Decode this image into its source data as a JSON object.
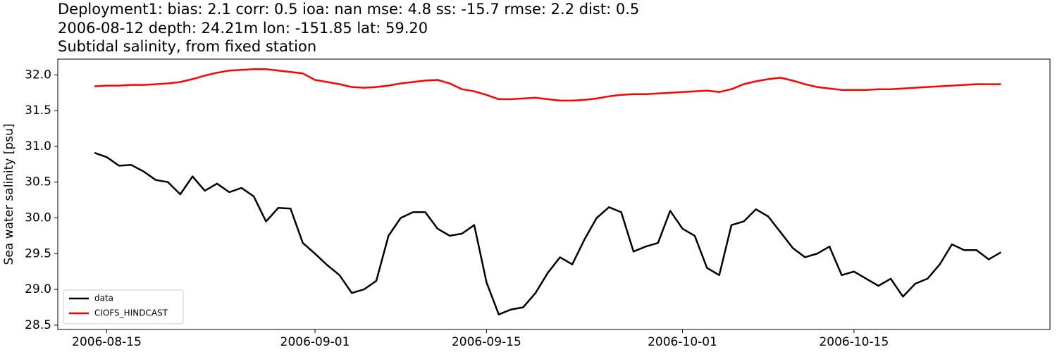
{
  "chart_data": {
    "type": "line",
    "title": [
      "Deployment1: bias: 2.1  corr: 0.5  ioa: nan  mse: 4.8  ss: -15.7  rmse: 2.2  dist: 0.5",
      "2006-08-12 depth: 24.21m lon: -151.85 lat: 59.20",
      "Subtidal salinity, from fixed station"
    ],
    "y_label": "Sea water salinity [psu]",
    "x": [
      "2006-08-14",
      "2006-08-15",
      "2006-08-16",
      "2006-08-17",
      "2006-08-18",
      "2006-08-19",
      "2006-08-20",
      "2006-08-21",
      "2006-08-22",
      "2006-08-23",
      "2006-08-24",
      "2006-08-25",
      "2006-08-26",
      "2006-08-27",
      "2006-08-28",
      "2006-08-29",
      "2006-08-30",
      "2006-08-31",
      "2006-09-01",
      "2006-09-02",
      "2006-09-03",
      "2006-09-04",
      "2006-09-05",
      "2006-09-06",
      "2006-09-07",
      "2006-09-08",
      "2006-09-09",
      "2006-09-10",
      "2006-09-11",
      "2006-09-12",
      "2006-09-13",
      "2006-09-14",
      "2006-09-15",
      "2006-09-16",
      "2006-09-17",
      "2006-09-18",
      "2006-09-19",
      "2006-09-20",
      "2006-09-21",
      "2006-09-22",
      "2006-09-23",
      "2006-09-24",
      "2006-09-25",
      "2006-09-26",
      "2006-09-27",
      "2006-09-28",
      "2006-09-29",
      "2006-09-30",
      "2006-10-01",
      "2006-10-02",
      "2006-10-03",
      "2006-10-04",
      "2006-10-05",
      "2006-10-06",
      "2006-10-07",
      "2006-10-08",
      "2006-10-09",
      "2006-10-10",
      "2006-10-11",
      "2006-10-12",
      "2006-10-13",
      "2006-10-14",
      "2006-10-15",
      "2006-10-16",
      "2006-10-17",
      "2006-10-18",
      "2006-10-19",
      "2006-10-20",
      "2006-10-21",
      "2006-10-22",
      "2006-10-23",
      "2006-10-24",
      "2006-10-25",
      "2006-10-26",
      "2006-10-27"
    ],
    "series": [
      {
        "name": "data",
        "color": "#000000",
        "values": [
          30.91,
          30.85,
          30.73,
          30.74,
          30.65,
          30.53,
          30.5,
          30.33,
          30.58,
          30.38,
          30.48,
          30.36,
          30.42,
          30.3,
          29.95,
          30.14,
          30.13,
          29.65,
          29.5,
          29.34,
          29.2,
          28.95,
          29.0,
          29.12,
          29.75,
          30.0,
          30.08,
          30.08,
          29.85,
          29.75,
          29.78,
          29.9,
          29.1,
          28.65,
          28.72,
          28.75,
          28.95,
          29.23,
          29.45,
          29.35,
          29.7,
          30.0,
          30.15,
          30.08,
          29.53,
          29.6,
          29.65,
          30.1,
          29.85,
          29.75,
          29.3,
          29.2,
          29.9,
          29.95,
          30.12,
          30.02,
          29.8,
          29.58,
          29.45,
          29.5,
          29.6,
          29.2,
          29.25,
          29.15,
          29.05,
          29.15,
          28.9,
          29.08,
          29.15,
          29.35,
          29.63,
          29.55,
          29.55,
          29.42,
          29.52
        ]
      },
      {
        "name": "CIOFS_HINDCAST",
        "color": "#ff0000",
        "values": [
          31.84,
          31.85,
          31.85,
          31.86,
          31.86,
          31.87,
          31.88,
          31.9,
          31.94,
          31.99,
          32.03,
          32.06,
          32.07,
          32.08,
          32.08,
          32.06,
          32.04,
          32.02,
          31.93,
          31.9,
          31.87,
          31.83,
          31.82,
          31.83,
          31.85,
          31.88,
          31.9,
          31.92,
          31.93,
          31.88,
          31.8,
          31.77,
          31.72,
          31.66,
          31.66,
          31.67,
          31.68,
          31.66,
          31.64,
          31.64,
          31.65,
          31.67,
          31.7,
          31.72,
          31.73,
          31.73,
          31.74,
          31.75,
          31.76,
          31.77,
          31.78,
          31.76,
          31.8,
          31.87,
          31.91,
          31.94,
          31.96,
          31.92,
          31.87,
          31.83,
          31.81,
          31.79,
          31.79,
          31.79,
          31.8,
          31.8,
          31.81,
          31.82,
          31.83,
          31.84,
          31.85,
          31.86,
          31.87,
          31.87,
          31.87
        ]
      }
    ],
    "xlim": [
      "2006-08-11",
      "2006-10-31"
    ],
    "xticks": [
      "2006-08-15",
      "2006-09-01",
      "2006-09-15",
      "2006-10-01",
      "2006-10-15"
    ],
    "ylim": [
      28.44,
      32.22
    ],
    "yticks": [
      28.5,
      {
        "value": 29,
        "label": "29.0"
      },
      29.5,
      {
        "value": 30,
        "label": "30.0"
      },
      30.5,
      {
        "value": 31,
        "label": "31.0"
      },
      31.5,
      {
        "value": 32,
        "label": "32.0"
      }
    ],
    "legend": "lower left",
    "grid": false
  }
}
